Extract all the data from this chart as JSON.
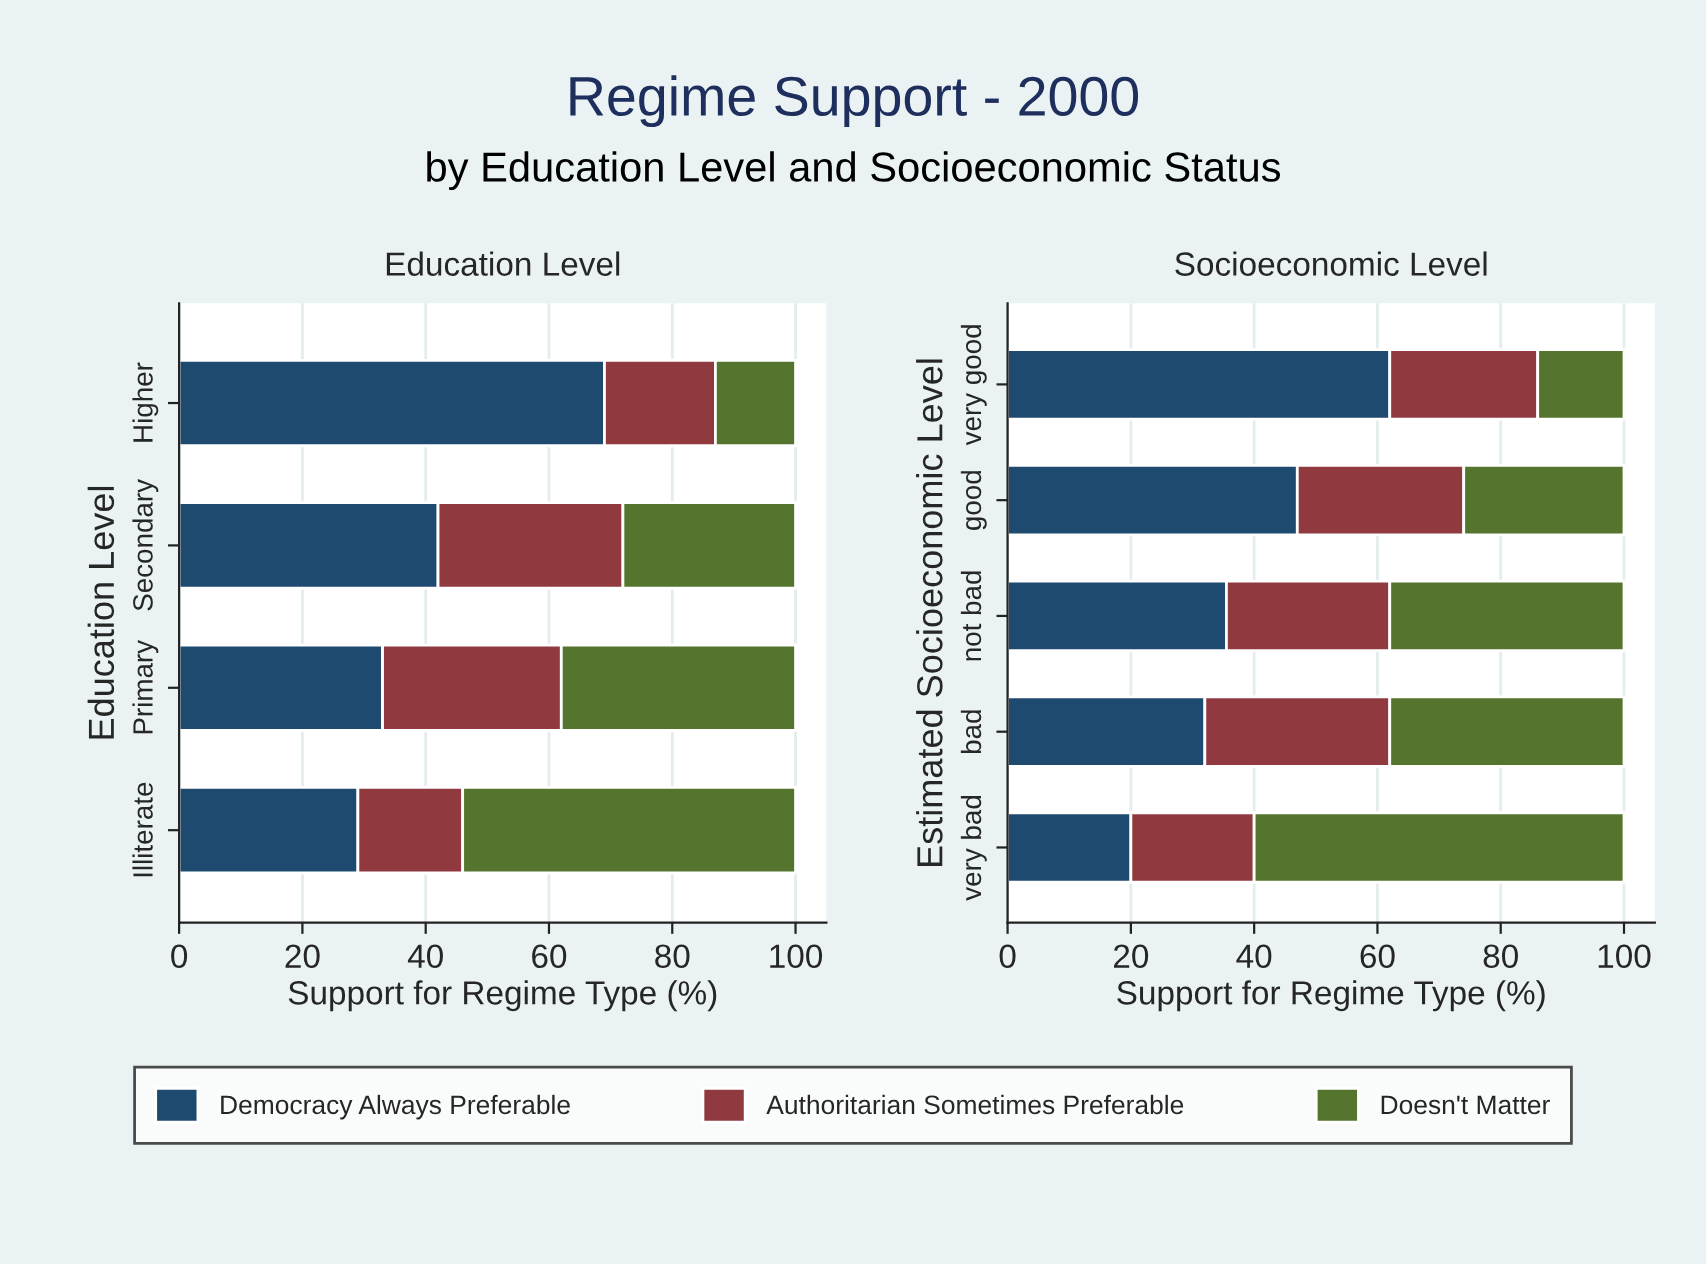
{
  "chart_data": [
    {
      "type": "bar",
      "orientation": "horizontal",
      "stacked": true,
      "title": "Education Level",
      "xlabel": "Support for Regime Type (%)",
      "ylabel": "Education Level",
      "annotations": [
        "Regime Support - 2000",
        "by Education Level and Socioeconomic Status"
      ],
      "categories": [
        "Higher",
        "Secondary",
        "Primary",
        "Illiterate"
      ],
      "series": [
        {
          "name": "Democracy Always Preferable",
          "color": "#1f4a70",
          "values": [
            69,
            42,
            33,
            29
          ]
        },
        {
          "name": "Authoritarian Sometimes Preferable",
          "color": "#903a40",
          "values": [
            18,
            30,
            29,
            17
          ]
        },
        {
          "name": "Doesn't Matter",
          "color": "#55752f",
          "values": [
            13,
            28,
            38,
            54
          ]
        }
      ],
      "xlim": [
        0,
        105
      ],
      "xticks": [
        0,
        20,
        40,
        60,
        80,
        100
      ],
      "grid": "x",
      "legend": "bottom"
    },
    {
      "type": "bar",
      "orientation": "horizontal",
      "stacked": true,
      "title": "Socioeconomic Level",
      "xlabel": "Support for Regime Type (%)",
      "ylabel": "Estimated Socioeconomic Level",
      "categories": [
        "very good",
        "good",
        "not bad",
        "bad",
        "very bad"
      ],
      "series": [
        {
          "color": "#1f4a70",
          "values": [
            62,
            47,
            35.5,
            32,
            20
          ]
        },
        {
          "color": "#903a40",
          "values": [
            24,
            27,
            26.5,
            30,
            20
          ]
        },
        {
          "color": "#55752f",
          "values": [
            14,
            26,
            38,
            38,
            60
          ]
        }
      ],
      "xlim": [
        0,
        105
      ],
      "xticks": [
        0,
        20,
        40,
        60,
        80,
        100
      ],
      "grid": "x"
    }
  ]
}
